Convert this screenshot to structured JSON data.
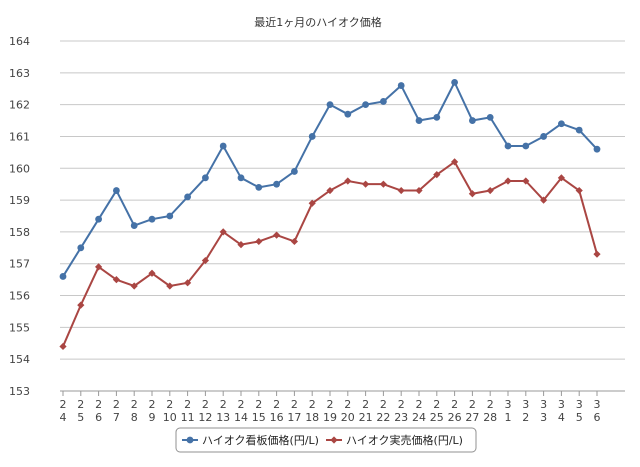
{
  "chart_data": {
    "type": "line",
    "title": "最近1ヶ月のハイオク価格",
    "xlabel": "",
    "ylabel": "",
    "ylim": [
      153,
      164
    ],
    "yticks": [
      153,
      154,
      155,
      156,
      157,
      158,
      159,
      160,
      161,
      162,
      163,
      164
    ],
    "grid": true,
    "legend_position": "bottom",
    "categories": [
      [
        "2",
        "4"
      ],
      [
        "2",
        "5"
      ],
      [
        "2",
        "6"
      ],
      [
        "2",
        "7"
      ],
      [
        "2",
        "8"
      ],
      [
        "2",
        "9"
      ],
      [
        "2",
        "10"
      ],
      [
        "2",
        "11"
      ],
      [
        "2",
        "12"
      ],
      [
        "2",
        "13"
      ],
      [
        "2",
        "14"
      ],
      [
        "2",
        "15"
      ],
      [
        "2",
        "16"
      ],
      [
        "2",
        "17"
      ],
      [
        "2",
        "18"
      ],
      [
        "2",
        "19"
      ],
      [
        "2",
        "20"
      ],
      [
        "2",
        "21"
      ],
      [
        "2",
        "22"
      ],
      [
        "2",
        "23"
      ],
      [
        "2",
        "24"
      ],
      [
        "2",
        "25"
      ],
      [
        "2",
        "26"
      ],
      [
        "2",
        "27"
      ],
      [
        "2",
        "28"
      ],
      [
        "3",
        "1"
      ],
      [
        "3",
        "2"
      ],
      [
        "3",
        "3"
      ],
      [
        "3",
        "4"
      ],
      [
        "3",
        "5"
      ],
      [
        "3",
        "6"
      ]
    ],
    "series": [
      {
        "name": "ハイオク看板価格(円/L)",
        "color": "#4572a7",
        "marker": "circle",
        "values": [
          156.6,
          157.5,
          158.4,
          159.3,
          158.2,
          158.4,
          158.5,
          159.1,
          159.7,
          160.7,
          159.7,
          159.4,
          159.5,
          159.9,
          161.0,
          162.0,
          161.7,
          162.0,
          162.1,
          162.6,
          161.5,
          161.6,
          162.7,
          161.5,
          161.6,
          160.7,
          160.7,
          161.0,
          161.4,
          161.2,
          160.6
        ]
      },
      {
        "name": "ハイオク実売価格(円/L)",
        "color": "#aa4643",
        "marker": "diamond",
        "values": [
          154.4,
          155.7,
          156.9,
          156.5,
          156.3,
          156.7,
          156.3,
          156.4,
          157.1,
          158.0,
          157.6,
          157.7,
          157.9,
          157.7,
          158.9,
          159.3,
          159.6,
          159.5,
          159.5,
          159.3,
          159.3,
          159.8,
          160.2,
          159.2,
          159.3,
          159.6,
          159.6,
          159.0,
          159.7,
          159.3,
          157.3
        ]
      }
    ]
  }
}
